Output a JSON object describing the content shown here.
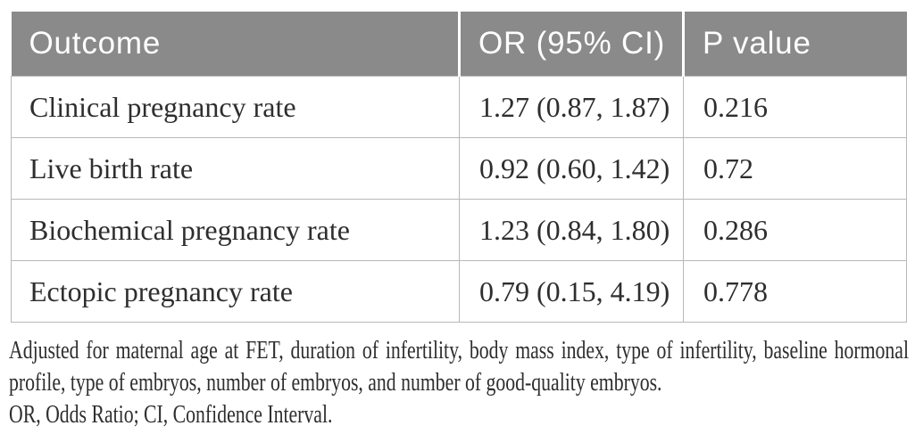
{
  "colors": {
    "page_bg": "#ffffff",
    "header_bg": "#8a8a8a",
    "header_text": "#ffffff",
    "header_divider": "#ffffff",
    "row_bg": "#ffffff",
    "body_text": "#2e2e2e",
    "border": "#b8b8b8"
  },
  "table": {
    "columns": [
      "Outcome",
      "OR (95% CI)",
      "P value"
    ],
    "rows": [
      {
        "outcome": "Clinical pregnancy rate",
        "or_ci": "1.27 (0.87, 1.87)",
        "p_value": "0.216"
      },
      {
        "outcome": "Live birth rate",
        "or_ci": "0.92 (0.60, 1.42)",
        "p_value": "0.72"
      },
      {
        "outcome": "Biochemical pregnancy rate",
        "or_ci": "1.23 (0.84, 1.80)",
        "p_value": "0.286"
      },
      {
        "outcome": "Ectopic pregnancy rate",
        "or_ci": "0.79 (0.15, 4.19)",
        "p_value": "0.778"
      }
    ]
  },
  "footnotes": {
    "adjustments": "Adjusted for maternal age at FET, duration of infertility, body mass index, type of infertility, baseline hormonal profile, type of embryos, number of embryos, and number of good-quality embryos.",
    "abbreviations": "OR, Odds Ratio; CI, Confidence Interval."
  }
}
